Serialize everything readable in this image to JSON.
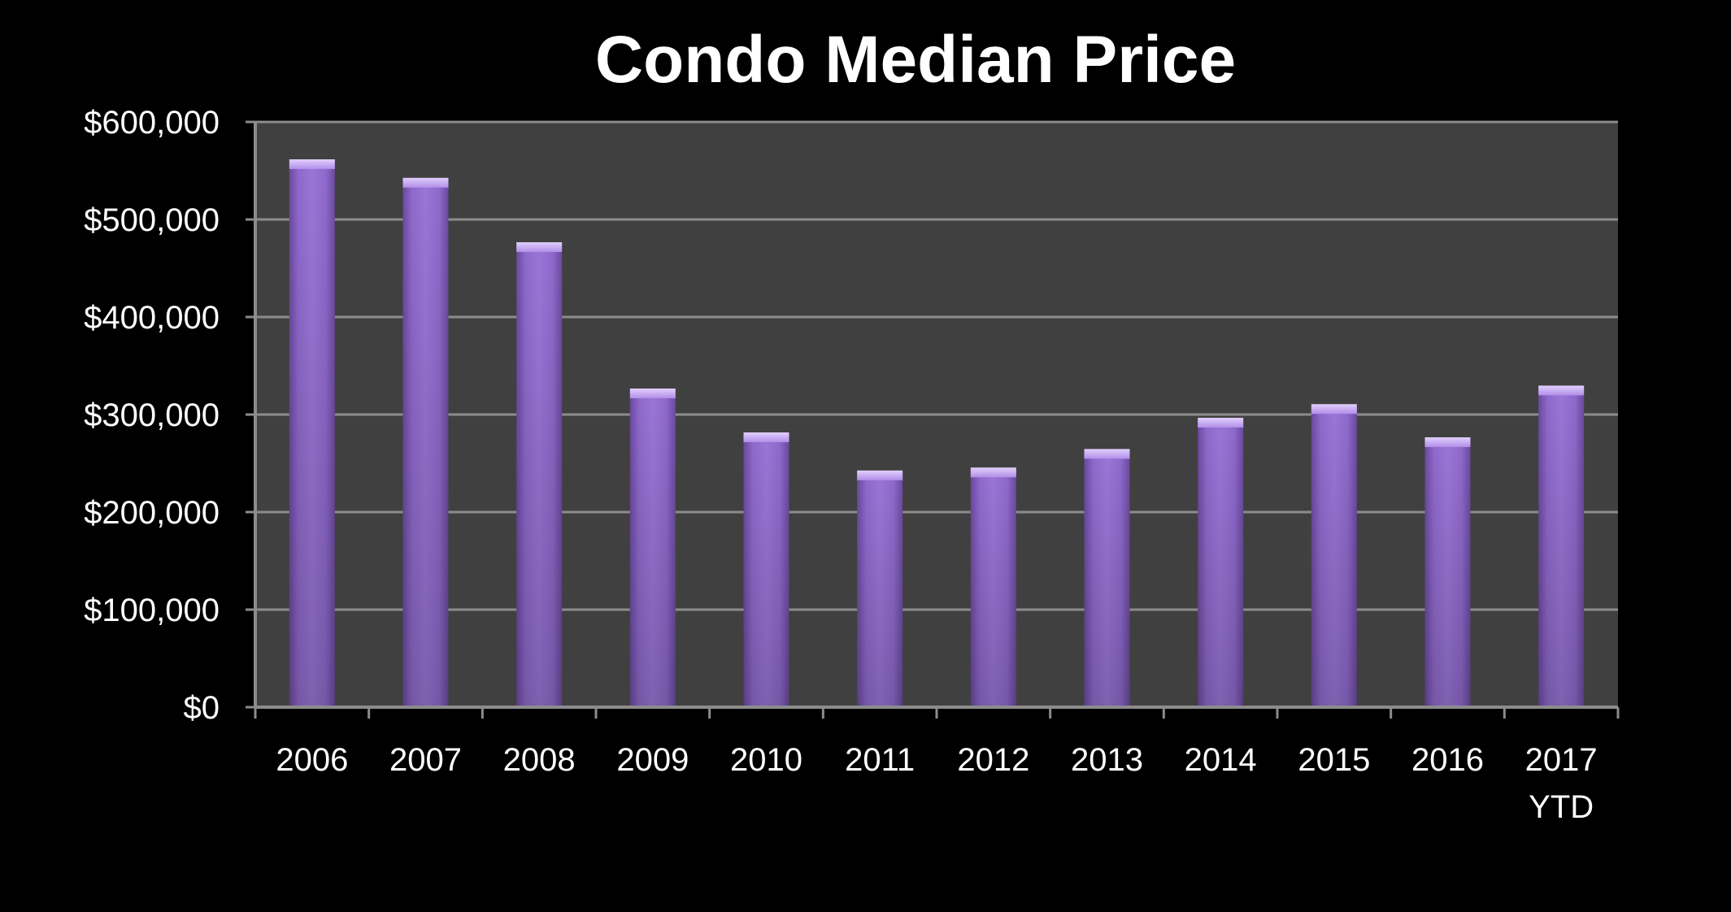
{
  "chart_data": {
    "type": "bar",
    "title": "Condo Median Price",
    "xlabel": "",
    "ylabel": "",
    "categories": [
      "2006",
      "2007",
      "2008",
      "2009",
      "2010",
      "2011",
      "2012",
      "2013",
      "2014",
      "2015",
      "2016",
      "2017\nYTD"
    ],
    "values": [
      560000,
      541000,
      475000,
      325000,
      280000,
      241000,
      244000,
      263000,
      295000,
      309000,
      275000,
      328000
    ],
    "ylim": [
      0,
      600000
    ],
    "yticks": [
      "$0",
      "$100,000",
      "$200,000",
      "$300,000",
      "$400,000",
      "$500,000",
      "$600,000"
    ],
    "grid": true,
    "legend": "none",
    "colors": {
      "background": "#000000",
      "plot_area": "#404040",
      "bar": "#8a63c6",
      "bar_top": "#c6a6f3",
      "gridline": "#8c8c8c",
      "text": "#ffffff"
    }
  }
}
